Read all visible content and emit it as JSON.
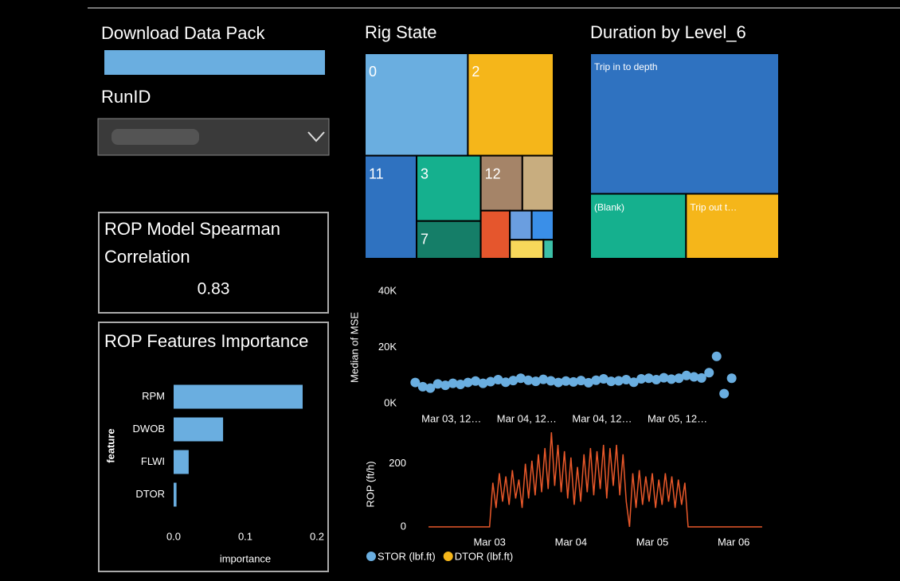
{
  "download": {
    "title": "Download Data Pack"
  },
  "runid": {
    "label": "RunID"
  },
  "kpi": {
    "title_lines": [
      "ROP Model Spearman",
      "Correlation"
    ],
    "value": "0.83"
  },
  "legend": {
    "items": [
      {
        "name": "STOR (lbf.ft)",
        "color": "#6aaee0"
      },
      {
        "name": "DTOR (lbf.ft)",
        "color": "#f5b61a"
      }
    ]
  },
  "chart_data": [
    {
      "type": "bar",
      "orientation": "horizontal",
      "title": "ROP Features Importance",
      "categories": [
        "RPM",
        "DWOB",
        "FLWI",
        "DTOR"
      ],
      "values": [
        0.18,
        0.069,
        0.021,
        0.004
      ],
      "color": "#6aaee0",
      "xlim": [
        0,
        0.2
      ],
      "xticks": [
        {
          "value": 0,
          "label": "0.0"
        },
        0.1,
        0.2
      ],
      "x_label": "importance",
      "y_label": "feature"
    },
    {
      "type": "treemap",
      "title": "Rig State",
      "categories": [
        "0",
        "2",
        "11",
        "3",
        "7",
        "12",
        null,
        null,
        null,
        null,
        null,
        null
      ],
      "values": [
        16.6,
        13.8,
        8.4,
        6.6,
        3.8,
        3.6,
        2.7,
        2.2,
        1.0,
        1.0,
        1.0,
        0.3
      ],
      "colors": [
        "#6aaee0",
        "#f5b61a",
        "#2f72c0",
        "#15b08e",
        "#157e68",
        "#a58468",
        "#c8ad7f",
        "#e5562d",
        "#6a9ee0",
        "#3a8fe8",
        "#f7d85a",
        "#3cc0a8"
      ]
    },
    {
      "type": "treemap",
      "title": "Duration by Level_6",
      "categories": [
        "Trip in to depth",
        "(Blank)",
        "Trip out t…"
      ],
      "values": [
        41.8,
        9.8,
        9.5
      ],
      "colors": [
        "#2f72c0",
        "#15b08e",
        "#f5b61a"
      ]
    },
    {
      "type": "scatter",
      "y_label": "Median of MSE",
      "color": "#6aaee0",
      "x": [
        3.26,
        3.31,
        3.36,
        3.41,
        3.46,
        3.51,
        3.56,
        3.61,
        3.66,
        3.71,
        3.76,
        3.81,
        3.86,
        3.91,
        3.96,
        4.01,
        4.06,
        4.11,
        4.16,
        4.21,
        4.26,
        4.31,
        4.36,
        4.41,
        4.46,
        4.51,
        4.56,
        4.61,
        4.66,
        4.71,
        4.76,
        4.81,
        4.86,
        4.91,
        4.96,
        5.01,
        5.06,
        5.11,
        5.16,
        5.21,
        5.26,
        5.31,
        5.36
      ],
      "values": [
        7500,
        6000,
        5500,
        7000,
        6500,
        7200,
        6800,
        7500,
        8000,
        7200,
        7800,
        8500,
        7600,
        8200,
        9000,
        8300,
        7900,
        8600,
        8100,
        7500,
        8000,
        7700,
        8200,
        7400,
        8300,
        8800,
        7900,
        8100,
        8500,
        7600,
        8800,
        9000,
        8500,
        9200,
        8700,
        9000,
        10000,
        9500,
        9100,
        11000,
        16800,
        3500,
        9000
      ],
      "xlim": [
        3.2,
        5.42
      ],
      "xticks": [
        {
          "value": 3.5,
          "label": "Mar 03, 12…"
        },
        {
          "value": 4.0,
          "label": "Mar 04, 12…"
        },
        {
          "value": 4.5,
          "label": "Mar 04, 12…"
        },
        {
          "value": 5.0,
          "label": "Mar 05, 12…"
        }
      ],
      "ylim": [
        0,
        40000
      ],
      "yticks": [
        {
          "value": 0,
          "label": "0K"
        },
        {
          "value": 20000,
          "label": "20K"
        },
        {
          "value": 40000,
          "label": "40K"
        }
      ]
    },
    {
      "type": "line",
      "y_label": "ROP (ft/h)",
      "color": "#e8582a",
      "x": [
        2.25,
        3.0,
        3.04,
        3.08,
        3.12,
        3.16,
        3.2,
        3.24,
        3.28,
        3.32,
        3.36,
        3.4,
        3.44,
        3.48,
        3.52,
        3.56,
        3.6,
        3.64,
        3.68,
        3.72,
        3.76,
        3.8,
        3.84,
        3.88,
        3.92,
        3.96,
        4.0,
        4.04,
        4.08,
        4.12,
        4.16,
        4.2,
        4.24,
        4.28,
        4.32,
        4.36,
        4.4,
        4.44,
        4.48,
        4.52,
        4.56,
        4.6,
        4.64,
        4.68,
        4.72,
        4.76,
        4.8,
        4.84,
        4.88,
        4.92,
        4.96,
        5.0,
        5.04,
        5.08,
        5.12,
        5.16,
        5.2,
        5.24,
        5.28,
        5.32,
        5.36,
        5.4,
        5.44,
        6.35
      ],
      "values": [
        0,
        0,
        140,
        60,
        170,
        80,
        160,
        70,
        180,
        90,
        150,
        60,
        200,
        90,
        210,
        100,
        230,
        110,
        250,
        120,
        300,
        130,
        260,
        110,
        240,
        90,
        220,
        70,
        190,
        80,
        230,
        110,
        250,
        100,
        240,
        120,
        260,
        90,
        250,
        130,
        260,
        100,
        230,
        80,
        0,
        170,
        60,
        180,
        70,
        160,
        80,
        170,
        60,
        150,
        70,
        170,
        80,
        160,
        60,
        150,
        70,
        140,
        0,
        0
      ],
      "xlim": [
        2.22,
        6.38
      ],
      "xticks": [
        {
          "value": 3,
          "label": "Mar 03"
        },
        {
          "value": 4,
          "label": "Mar 04"
        },
        {
          "value": 5,
          "label": "Mar 05"
        },
        {
          "value": 6,
          "label": "Mar 06"
        }
      ],
      "ylim": [
        0,
        270
      ],
      "yticks": [
        0,
        200
      ]
    }
  ]
}
